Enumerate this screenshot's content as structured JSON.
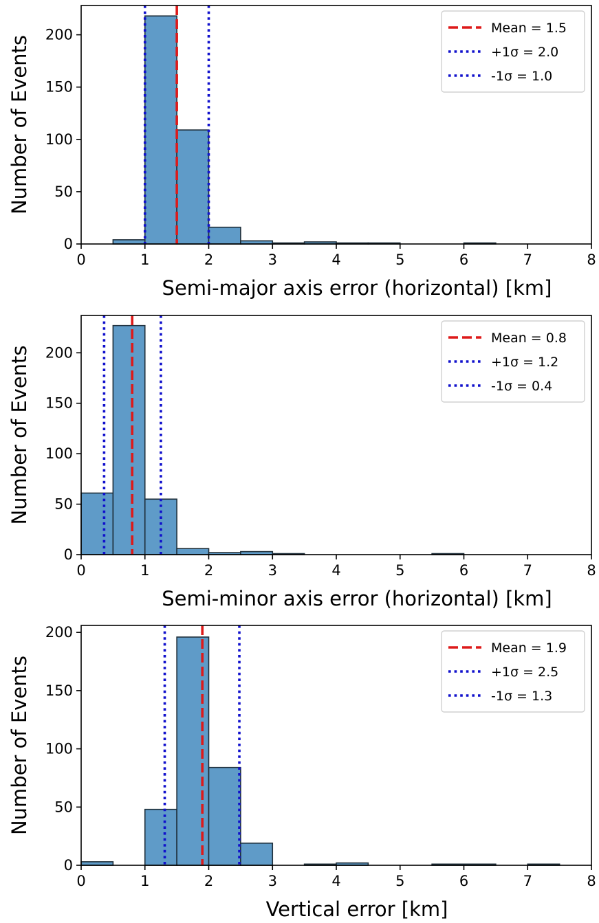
{
  "chart_data": [
    {
      "type": "bar",
      "xlabel": "Semi-major axis error (horizontal) [km]",
      "ylabel": "Number of Events",
      "xlim": [
        0,
        8
      ],
      "ylim": [
        0,
        228
      ],
      "xticks": [
        0,
        1,
        2,
        3,
        4,
        5,
        6,
        7,
        8
      ],
      "yticks": [
        0,
        50,
        100,
        150,
        200
      ],
      "bin_width": 0.5,
      "bins": [
        {
          "x0": 0.5,
          "value": 4
        },
        {
          "x0": 1.0,
          "value": 218
        },
        {
          "x0": 1.5,
          "value": 109
        },
        {
          "x0": 2.0,
          "value": 16
        },
        {
          "x0": 2.5,
          "value": 3
        },
        {
          "x0": 3.0,
          "value": 1
        },
        {
          "x0": 3.5,
          "value": 2
        },
        {
          "x0": 4.0,
          "value": 1
        },
        {
          "x0": 4.5,
          "value": 1
        },
        {
          "x0": 6.0,
          "value": 1
        }
      ],
      "lines": [
        {
          "name": "Mean = 1.5",
          "x": 1.5,
          "style": "mean"
        },
        {
          "name": "+1σ = 2.0",
          "x": 2.0,
          "style": "sigma"
        },
        {
          "name": "-1σ = 1.0",
          "x": 1.0,
          "style": "sigma"
        }
      ],
      "legend_position": "top-right",
      "grid": false
    },
    {
      "type": "bar",
      "xlabel": "Semi-minor axis error (horizontal) [km]",
      "ylabel": "Number of Events",
      "xlim": [
        0,
        8
      ],
      "ylim": [
        0,
        237
      ],
      "xticks": [
        0,
        1,
        2,
        3,
        4,
        5,
        6,
        7,
        8
      ],
      "yticks": [
        0,
        50,
        100,
        150,
        200
      ],
      "bin_width": 0.5,
      "bins": [
        {
          "x0": 0.0,
          "value": 61
        },
        {
          "x0": 0.5,
          "value": 227
        },
        {
          "x0": 1.0,
          "value": 55
        },
        {
          "x0": 1.5,
          "value": 6
        },
        {
          "x0": 2.0,
          "value": 2
        },
        {
          "x0": 2.5,
          "value": 3
        },
        {
          "x0": 3.0,
          "value": 1
        },
        {
          "x0": 5.5,
          "value": 1
        }
      ],
      "lines": [
        {
          "name": "Mean = 0.8",
          "x": 0.8,
          "style": "mean"
        },
        {
          "name": "+1σ = 1.2",
          "x": 1.25,
          "style": "sigma"
        },
        {
          "name": "-1σ = 0.4",
          "x": 0.36,
          "style": "sigma"
        }
      ],
      "legend_position": "top-right",
      "grid": false
    },
    {
      "type": "bar",
      "xlabel": "Vertical error [km]",
      "ylabel": "Number of Events",
      "xlim": [
        0,
        8
      ],
      "ylim": [
        0,
        206
      ],
      "xticks": [
        0,
        1,
        2,
        3,
        4,
        5,
        6,
        7,
        8
      ],
      "yticks": [
        0,
        50,
        100,
        150,
        200
      ],
      "bin_width": 0.5,
      "bins": [
        {
          "x0": 0.0,
          "value": 3
        },
        {
          "x0": 1.0,
          "value": 48
        },
        {
          "x0": 1.5,
          "value": 196
        },
        {
          "x0": 2.0,
          "value": 84
        },
        {
          "x0": 2.5,
          "value": 19
        },
        {
          "x0": 3.5,
          "value": 1
        },
        {
          "x0": 4.0,
          "value": 2
        },
        {
          "x0": 5.5,
          "value": 1
        },
        {
          "x0": 6.0,
          "value": 1
        },
        {
          "x0": 7.0,
          "value": 1
        }
      ],
      "lines": [
        {
          "name": "Mean = 1.9",
          "x": 1.9,
          "style": "mean"
        },
        {
          "name": "+1σ = 2.5",
          "x": 2.48,
          "style": "sigma"
        },
        {
          "name": "-1σ = 1.3",
          "x": 1.31,
          "style": "sigma"
        }
      ],
      "legend_position": "top-right",
      "grid": false
    }
  ],
  "colors": {
    "bar_fill": "#5f9bc8",
    "bar_edge": "#1f2f3a",
    "mean_line": "#dd1a1a",
    "sigma_line": "#1010cc",
    "axis": "#000000"
  }
}
